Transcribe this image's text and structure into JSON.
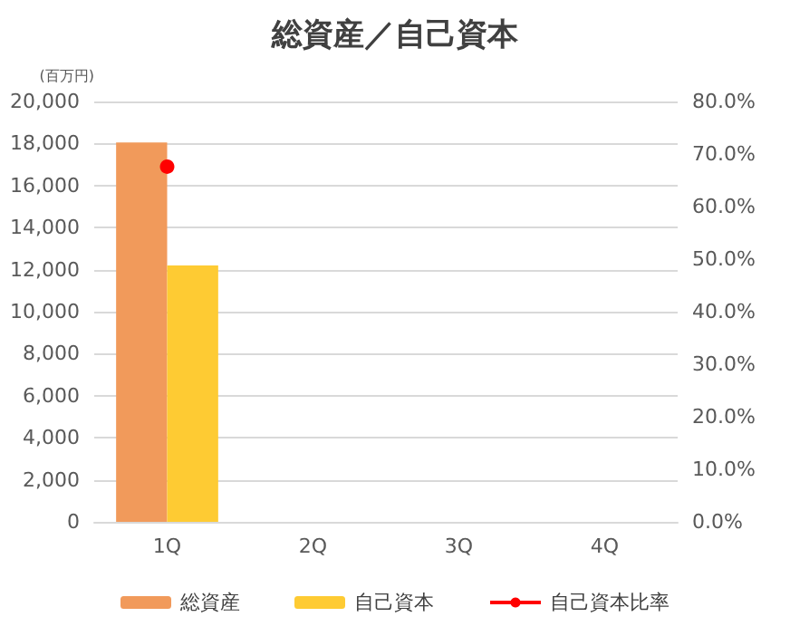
{
  "chart_data": {
    "type": "bar",
    "title": "総資産／自己資本",
    "ylabel": "(百万円)",
    "categories": [
      "1Q",
      "2Q",
      "3Q",
      "4Q"
    ],
    "series": [
      {
        "name": "総資産",
        "color": "#f19a5b",
        "values": [
          18050,
          null,
          null,
          null
        ]
      },
      {
        "name": "自己資本",
        "color": "#fecb33",
        "values": [
          12200,
          null,
          null,
          null
        ]
      },
      {
        "name": "自己資本比率",
        "type": "line",
        "axis": "y2",
        "color": "#ff0000",
        "values": [
          67.6,
          null,
          null,
          null
        ]
      }
    ],
    "ylim": [
      0,
      20000
    ],
    "yticks": [
      0,
      {
        "value": 2000,
        "label": "2,000"
      },
      {
        "value": 4000,
        "label": "4,000"
      },
      {
        "value": 6000,
        "label": "6,000"
      },
      {
        "value": 8000,
        "label": "8,000"
      },
      {
        "value": 10000,
        "label": "10,000"
      },
      {
        "value": 12000,
        "label": "12,000"
      },
      {
        "value": 14000,
        "label": "14,000"
      },
      {
        "value": 16000,
        "label": "16,000"
      },
      {
        "value": 18000,
        "label": "18,000"
      },
      {
        "value": 20000,
        "label": "20,000"
      }
    ],
    "y2lim": [
      0,
      80
    ],
    "y2ticks": [
      {
        "value": 0,
        "label": "0.0%"
      },
      {
        "value": 10,
        "label": "10.0%"
      },
      {
        "value": 20,
        "label": "20.0%"
      },
      {
        "value": 30,
        "label": "30.0%"
      },
      {
        "value": 40,
        "label": "40.0%"
      },
      {
        "value": 50,
        "label": "50.0%"
      },
      {
        "value": 60,
        "label": "60.0%"
      },
      {
        "value": 70,
        "label": "70.0%"
      },
      {
        "value": 80,
        "label": "80.0%"
      }
    ],
    "grid": "y",
    "legend": "bottom",
    "marker": "circle"
  }
}
